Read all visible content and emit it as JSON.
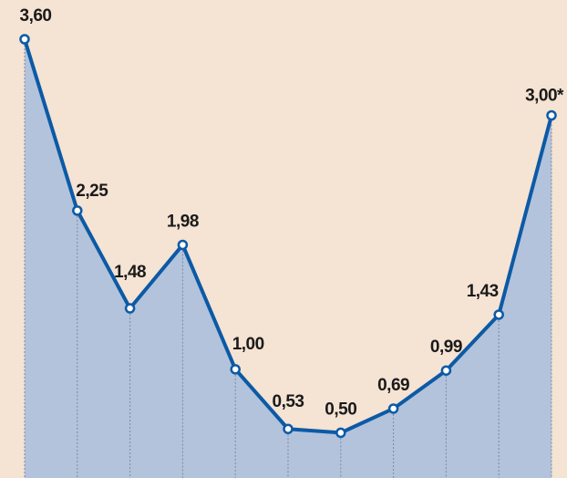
{
  "chart_data": {
    "type": "area",
    "title": "",
    "xlabel": "",
    "ylabel": "",
    "ylim": [
      0,
      3.6
    ],
    "grid": "vertical dotted drop lines at each point",
    "colors": {
      "background": "#f5e3d3",
      "area": "#b2c3db",
      "line": "#0c5aa6",
      "marker_fill": "#ffffff",
      "dropline": "#7a8aa0"
    },
    "series": [
      {
        "values": [
          3.6,
          2.25,
          1.48,
          1.98,
          1.0,
          0.53,
          0.5,
          0.69,
          0.99,
          1.43,
          3.0
        ],
        "labels": [
          "3,60",
          "2,25",
          "1,48",
          "1,98",
          "1,00",
          "0,53",
          "0,50",
          "0,69",
          "0,99",
          "1,43",
          "3,00*"
        ]
      }
    ]
  }
}
